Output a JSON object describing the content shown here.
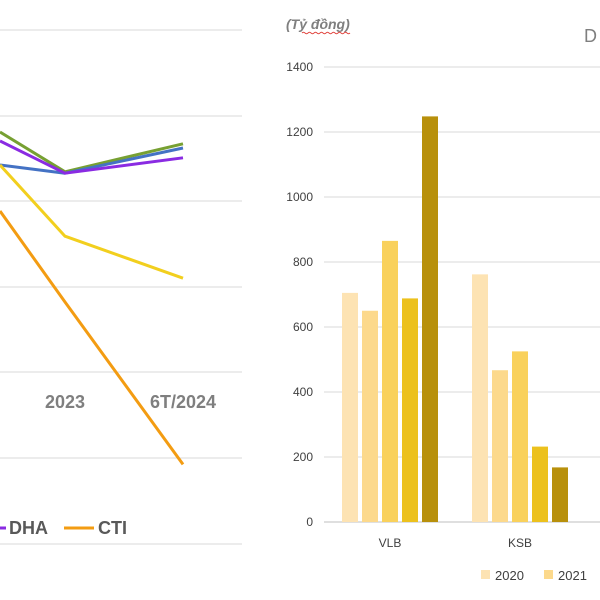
{
  "chart_data": [
    {
      "type": "line",
      "categories": [
        "2023",
        "6T/2024"
      ],
      "visible_legend": [
        {
          "name": "DHA",
          "color": "#8a2be2"
        },
        {
          "name": "CTI",
          "color": "#f39c12"
        }
      ],
      "series": [
        {
          "color": "#77a032",
          "values": [
            0.83,
            1.03
          ]
        },
        {
          "color": "#4472c4",
          "values": [
            0.82,
            1.0
          ]
        },
        {
          "name": "DHA",
          "color": "#8a2be2",
          "values": [
            0.82,
            0.93
          ]
        },
        {
          "color": "#f2cf1e",
          "values": [
            0.37,
            0.07
          ]
        },
        {
          "name": "CTI",
          "color": "#f39c12",
          "values": [
            -0.1,
            -1.26
          ]
        }
      ],
      "grid": true
    },
    {
      "type": "bar",
      "unit_label": "(Tỷ đồng)",
      "categories": [
        "VLB",
        "KSB"
      ],
      "ylim": [
        0,
        1400
      ],
      "yticks": [
        0,
        200,
        400,
        600,
        800,
        1000,
        1200,
        1400
      ],
      "series": [
        {
          "name": "2020",
          "color": "#fde3b3",
          "values": [
            705,
            762
          ]
        },
        {
          "name": "2021",
          "color": "#fcd98c",
          "values": [
            650,
            467
          ]
        },
        {
          "color": "#f9d15c",
          "values": [
            865,
            525
          ]
        },
        {
          "color": "#ecc11d",
          "values": [
            688,
            232
          ]
        },
        {
          "color": "#b8900b",
          "values": [
            1248,
            168
          ]
        }
      ],
      "legend": [
        {
          "name": "2020",
          "color": "#fde3b3"
        },
        {
          "name": "2021",
          "color": "#fcd98c"
        }
      ],
      "cut_title_fragment": "D",
      "grid": true
    }
  ]
}
